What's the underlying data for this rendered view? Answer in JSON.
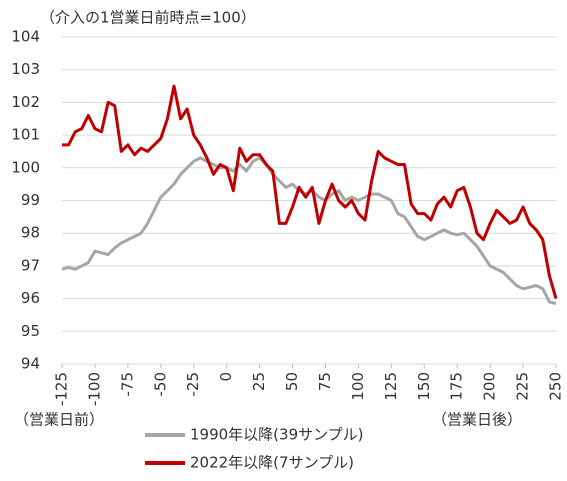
{
  "chart_data": {
    "type": "line",
    "annotations": [
      "（介入の1営業日前時点=100）",
      "（営業日前）",
      "（営業日後）"
    ],
    "x": [
      -125,
      -120,
      -115,
      -110,
      -105,
      -100,
      -95,
      -90,
      -85,
      -80,
      -75,
      -70,
      -65,
      -60,
      -55,
      -50,
      -45,
      -40,
      -35,
      -30,
      -25,
      -20,
      -15,
      -10,
      -5,
      0,
      5,
      10,
      15,
      20,
      25,
      30,
      35,
      40,
      45,
      50,
      55,
      60,
      65,
      70,
      75,
      80,
      85,
      90,
      95,
      100,
      105,
      110,
      115,
      120,
      125,
      130,
      135,
      140,
      145,
      150,
      155,
      160,
      165,
      170,
      175,
      180,
      185,
      190,
      195,
      200,
      205,
      210,
      215,
      220,
      225,
      230,
      235,
      240,
      245,
      250
    ],
    "series": [
      {
        "name": "1990年以降(39サンプル)",
        "color": "#a6a6a6",
        "values": [
          96.9,
          96.95,
          96.9,
          97.0,
          97.1,
          97.45,
          97.4,
          97.35,
          97.55,
          97.7,
          97.8,
          97.9,
          98.0,
          98.3,
          98.7,
          99.1,
          99.3,
          99.5,
          99.8,
          100.0,
          100.2,
          100.3,
          100.2,
          100.1,
          100.0,
          100.0,
          99.9,
          100.1,
          99.9,
          100.2,
          100.3,
          100.1,
          99.8,
          99.6,
          99.4,
          99.5,
          99.3,
          99.2,
          99.3,
          99.1,
          99.0,
          99.2,
          99.3,
          99.0,
          99.1,
          99.0,
          99.1,
          99.2,
          99.2,
          99.1,
          99.0,
          98.6,
          98.5,
          98.2,
          97.9,
          97.8,
          97.9,
          98.0,
          98.1,
          98.0,
          97.95,
          98.0,
          97.8,
          97.6,
          97.3,
          97.0,
          96.9,
          96.8,
          96.6,
          96.4,
          96.3,
          96.35,
          96.4,
          96.3,
          95.9,
          95.85
        ]
      },
      {
        "name": "2022年以降(7サンプル)",
        "color": "#c00000",
        "values": [
          100.7,
          100.7,
          101.1,
          101.2,
          101.6,
          101.2,
          101.1,
          102.0,
          101.9,
          100.5,
          100.7,
          100.4,
          100.6,
          100.5,
          100.7,
          100.9,
          101.5,
          102.5,
          101.5,
          101.8,
          101.0,
          100.7,
          100.3,
          99.8,
          100.1,
          100.0,
          99.3,
          100.6,
          100.2,
          100.4,
          100.4,
          100.1,
          99.9,
          98.3,
          98.3,
          98.8,
          99.4,
          99.1,
          99.4,
          98.3,
          99.0,
          99.5,
          99.0,
          98.8,
          99.0,
          98.6,
          98.4,
          99.6,
          100.5,
          100.3,
          100.2,
          100.1,
          100.1,
          98.9,
          98.6,
          98.6,
          98.4,
          98.9,
          99.1,
          98.8,
          99.3,
          99.4,
          98.8,
          98.0,
          97.8,
          98.3,
          98.7,
          98.5,
          98.3,
          98.4,
          98.8,
          98.3,
          98.1,
          97.8,
          96.7,
          96.0
        ]
      }
    ],
    "xlim": [
      -125,
      250
    ],
    "xticks": [
      -125,
      -100,
      -75,
      -50,
      -25,
      0,
      25,
      50,
      75,
      100,
      125,
      150,
      175,
      200,
      225,
      250
    ],
    "ylim": [
      94,
      104
    ],
    "yticks": [
      94,
      95,
      96,
      97,
      98,
      99,
      100,
      101,
      102,
      103,
      104
    ],
    "grid": true
  }
}
